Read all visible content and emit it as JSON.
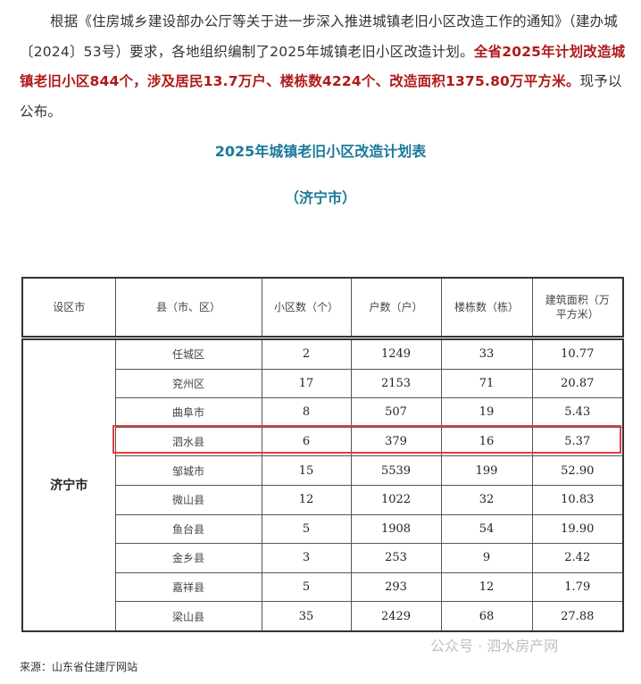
{
  "paragraph": {
    "normal1": "根据《住房城乡建设部办公厅等关于进一步深入推进城镇老旧小区改造工作的通知》（建办城〔2024〕53号）要求，各地组织编制了2025年城镇老旧小区改造计划。",
    "highlight": "全省2025年计划改造城镇老旧小区844个，涉及居民13.7万户、楼栋数4224个、改造面积1375.80万平方米。",
    "normal2": "现予以公布。"
  },
  "table_title": "2025年城镇老旧小区改造计划表",
  "table_subtitle": "（济宁市）",
  "headers": [
    "设区市",
    "县（市、区）",
    "小区数（个）",
    "户数（户）",
    "楼栋数（栋）",
    "建筑面积（万平方米）"
  ],
  "city": "济宁市",
  "rows": [
    [
      "任城区",
      "2",
      "1249",
      "33",
      "10.77"
    ],
    [
      "兖州区",
      "17",
      "2153",
      "71",
      "20.87"
    ],
    [
      "曲阜市",
      "8",
      "507",
      "19",
      "5.43"
    ],
    [
      "泗水县",
      "6",
      "379",
      "16",
      "5.37"
    ],
    [
      "邹城市",
      "15",
      "5539",
      "199",
      "52.90"
    ],
    [
      "微山县",
      "12",
      "1022",
      "32",
      "10.83"
    ],
    [
      "鱼台县",
      "5",
      "1908",
      "54",
      "19.90"
    ],
    [
      "金乡县",
      "3",
      "253",
      "9",
      "2.42"
    ],
    [
      "嘉祥县",
      "5",
      "293",
      "12",
      "1.79"
    ],
    [
      "梁山县",
      "35",
      "2429",
      "68",
      "27.88"
    ]
  ],
  "highlight_color": "#e04040",
  "watermark": "公众号 · 泗水房产网",
  "source": "来源：山东省住建厅网站"
}
